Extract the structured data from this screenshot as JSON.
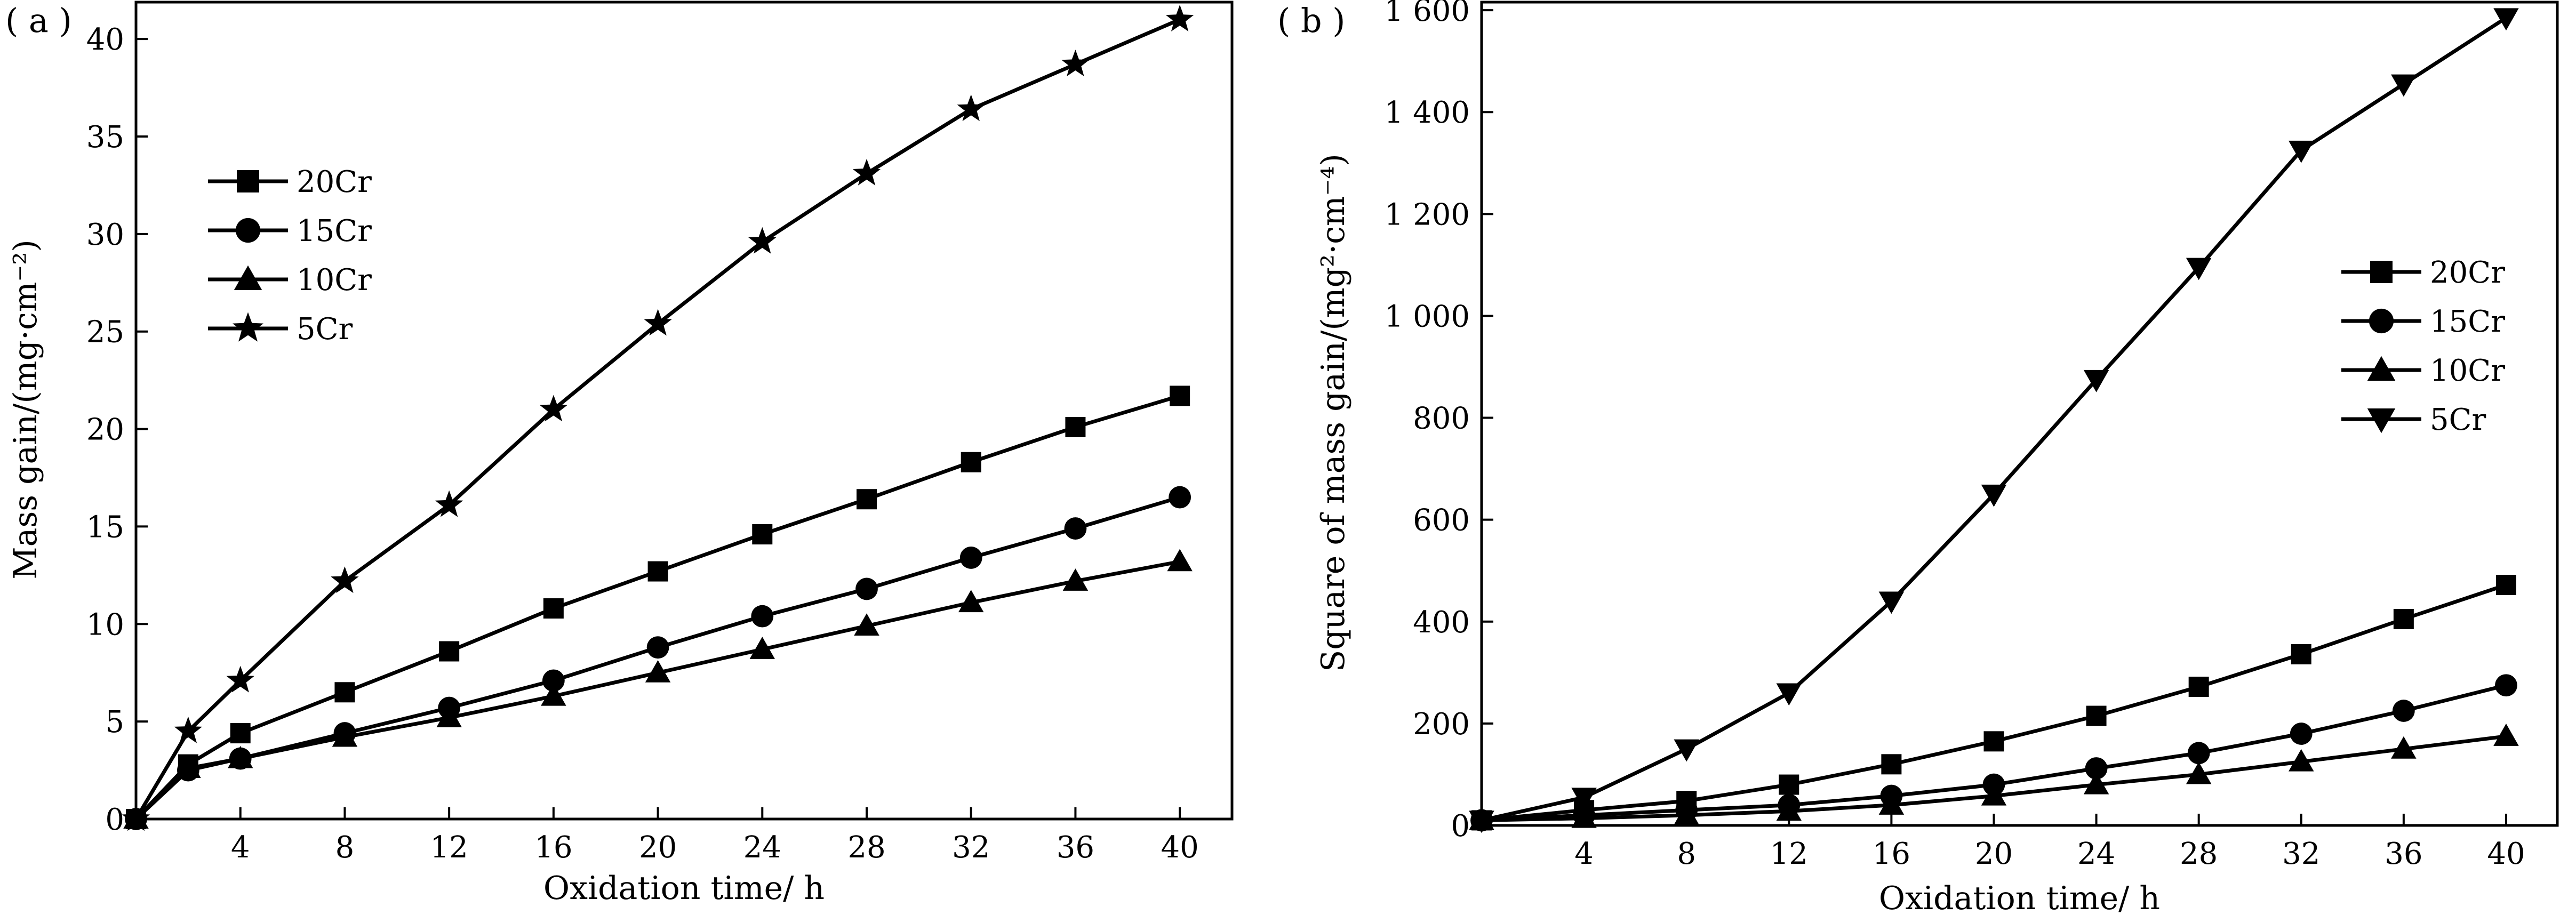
{
  "chart_data": [
    {
      "type": "line",
      "panel_label": "( a )",
      "xlabel": "Oxidation time/ h",
      "ylabel": "Mass gain/(mg·cm⁻²)",
      "xlim": [
        0,
        42
      ],
      "ylim": [
        0,
        42
      ],
      "x_ticks": [
        4,
        8,
        12,
        16,
        20,
        24,
        28,
        32,
        36,
        40
      ],
      "y_ticks": [
        0,
        5,
        10,
        15,
        20,
        25,
        30,
        35,
        40
      ],
      "legend_position": "upper-left",
      "series": [
        {
          "name": "20Cr",
          "marker": "square",
          "x": [
            0,
            2,
            4,
            8,
            12,
            16,
            20,
            24,
            28,
            32,
            36,
            40
          ],
          "y": [
            0,
            2.8,
            4.4,
            6.5,
            8.6,
            10.8,
            12.7,
            14.6,
            16.4,
            18.3,
            20.1,
            21.7
          ]
        },
        {
          "name": "15Cr",
          "marker": "circle",
          "x": [
            0,
            2,
            4,
            8,
            12,
            16,
            20,
            24,
            28,
            32,
            36,
            40
          ],
          "y": [
            0,
            2.5,
            3.1,
            4.4,
            5.7,
            7.1,
            8.8,
            10.4,
            11.8,
            13.4,
            14.9,
            16.5
          ]
        },
        {
          "name": "10Cr",
          "marker": "triangle-up",
          "x": [
            0,
            2,
            4,
            8,
            12,
            16,
            20,
            24,
            28,
            32,
            36,
            40
          ],
          "y": [
            0,
            2.6,
            3.1,
            4.2,
            5.2,
            6.3,
            7.5,
            8.7,
            9.9,
            11.1,
            12.2,
            13.2
          ]
        },
        {
          "name": "5Cr",
          "marker": "star",
          "x": [
            0,
            2,
            4,
            8,
            12,
            16,
            20,
            24,
            28,
            32,
            36,
            40
          ],
          "y": [
            0,
            4.5,
            7.1,
            12.2,
            16.1,
            21.0,
            25.4,
            29.6,
            33.1,
            36.4,
            38.7,
            41.0
          ]
        }
      ]
    },
    {
      "type": "line",
      "panel_label": "( b )",
      "xlabel": "Oxidation time/ h",
      "ylabel": "Square of mass gain/(mg²·cm⁻⁴)",
      "xlim": [
        0,
        42
      ],
      "ylim": [
        0,
        1620
      ],
      "x_ticks": [
        4,
        8,
        12,
        16,
        20,
        24,
        28,
        32,
        36,
        40
      ],
      "y_ticks": [
        0,
        200,
        400,
        600,
        800,
        1000,
        1200,
        1400,
        1600
      ],
      "y_tick_labels": [
        "0",
        "200",
        "400",
        "600",
        "800",
        "1 000",
        "1 200",
        "1 400",
        "1 600"
      ],
      "legend_position": "right",
      "series": [
        {
          "name": "20Cr",
          "marker": "square",
          "x": [
            0,
            4,
            8,
            12,
            16,
            20,
            24,
            28,
            32,
            36,
            40
          ],
          "y": [
            10,
            30,
            48,
            80,
            120,
            165,
            215,
            272,
            336,
            405,
            472
          ]
        },
        {
          "name": "15Cr",
          "marker": "circle",
          "x": [
            0,
            4,
            8,
            12,
            16,
            20,
            24,
            28,
            32,
            36,
            40
          ],
          "y": [
            10,
            20,
            30,
            40,
            58,
            80,
            112,
            142,
            180,
            225,
            275
          ]
        },
        {
          "name": "10Cr",
          "marker": "triangle-up",
          "x": [
            0,
            4,
            8,
            12,
            16,
            20,
            24,
            28,
            32,
            36,
            40
          ],
          "y": [
            10,
            14,
            20,
            28,
            40,
            58,
            80,
            100,
            125,
            150,
            175
          ]
        },
        {
          "name": "5Cr",
          "marker": "triangle-down",
          "x": [
            0,
            4,
            8,
            12,
            16,
            20,
            24,
            28,
            32,
            36,
            40
          ],
          "y": [
            10,
            55,
            150,
            260,
            440,
            650,
            875,
            1095,
            1325,
            1455,
            1585
          ]
        }
      ]
    }
  ]
}
